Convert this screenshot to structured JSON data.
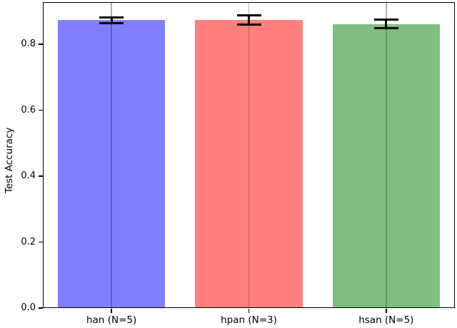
{
  "chart_data": {
    "type": "bar",
    "title": "",
    "xlabel": "",
    "ylabel": "Test Accuracy",
    "categories": [
      "han (N=5)",
      "hpan (N=3)",
      "hsan (N=5)"
    ],
    "values": [
      0.873,
      0.874,
      0.861
    ],
    "errors": [
      0.008,
      0.014,
      0.013
    ],
    "bar_colors": [
      "#0000FF",
      "#FF0000",
      "#008000"
    ],
    "bar_alpha": 0.5,
    "ylim": [
      0,
      0.928
    ],
    "yticks": [
      0,
      0.2,
      0.4,
      0.6,
      0.8
    ],
    "ytick_labels": [
      "0.0",
      "0.2",
      "0.4",
      "0.6",
      "0.8"
    ],
    "grid": "vertical-at-category-centers",
    "grid_color": "#b0b0b0",
    "error_bar_color": "#000000",
    "legend_position": "none",
    "spine_color": "#000000"
  }
}
